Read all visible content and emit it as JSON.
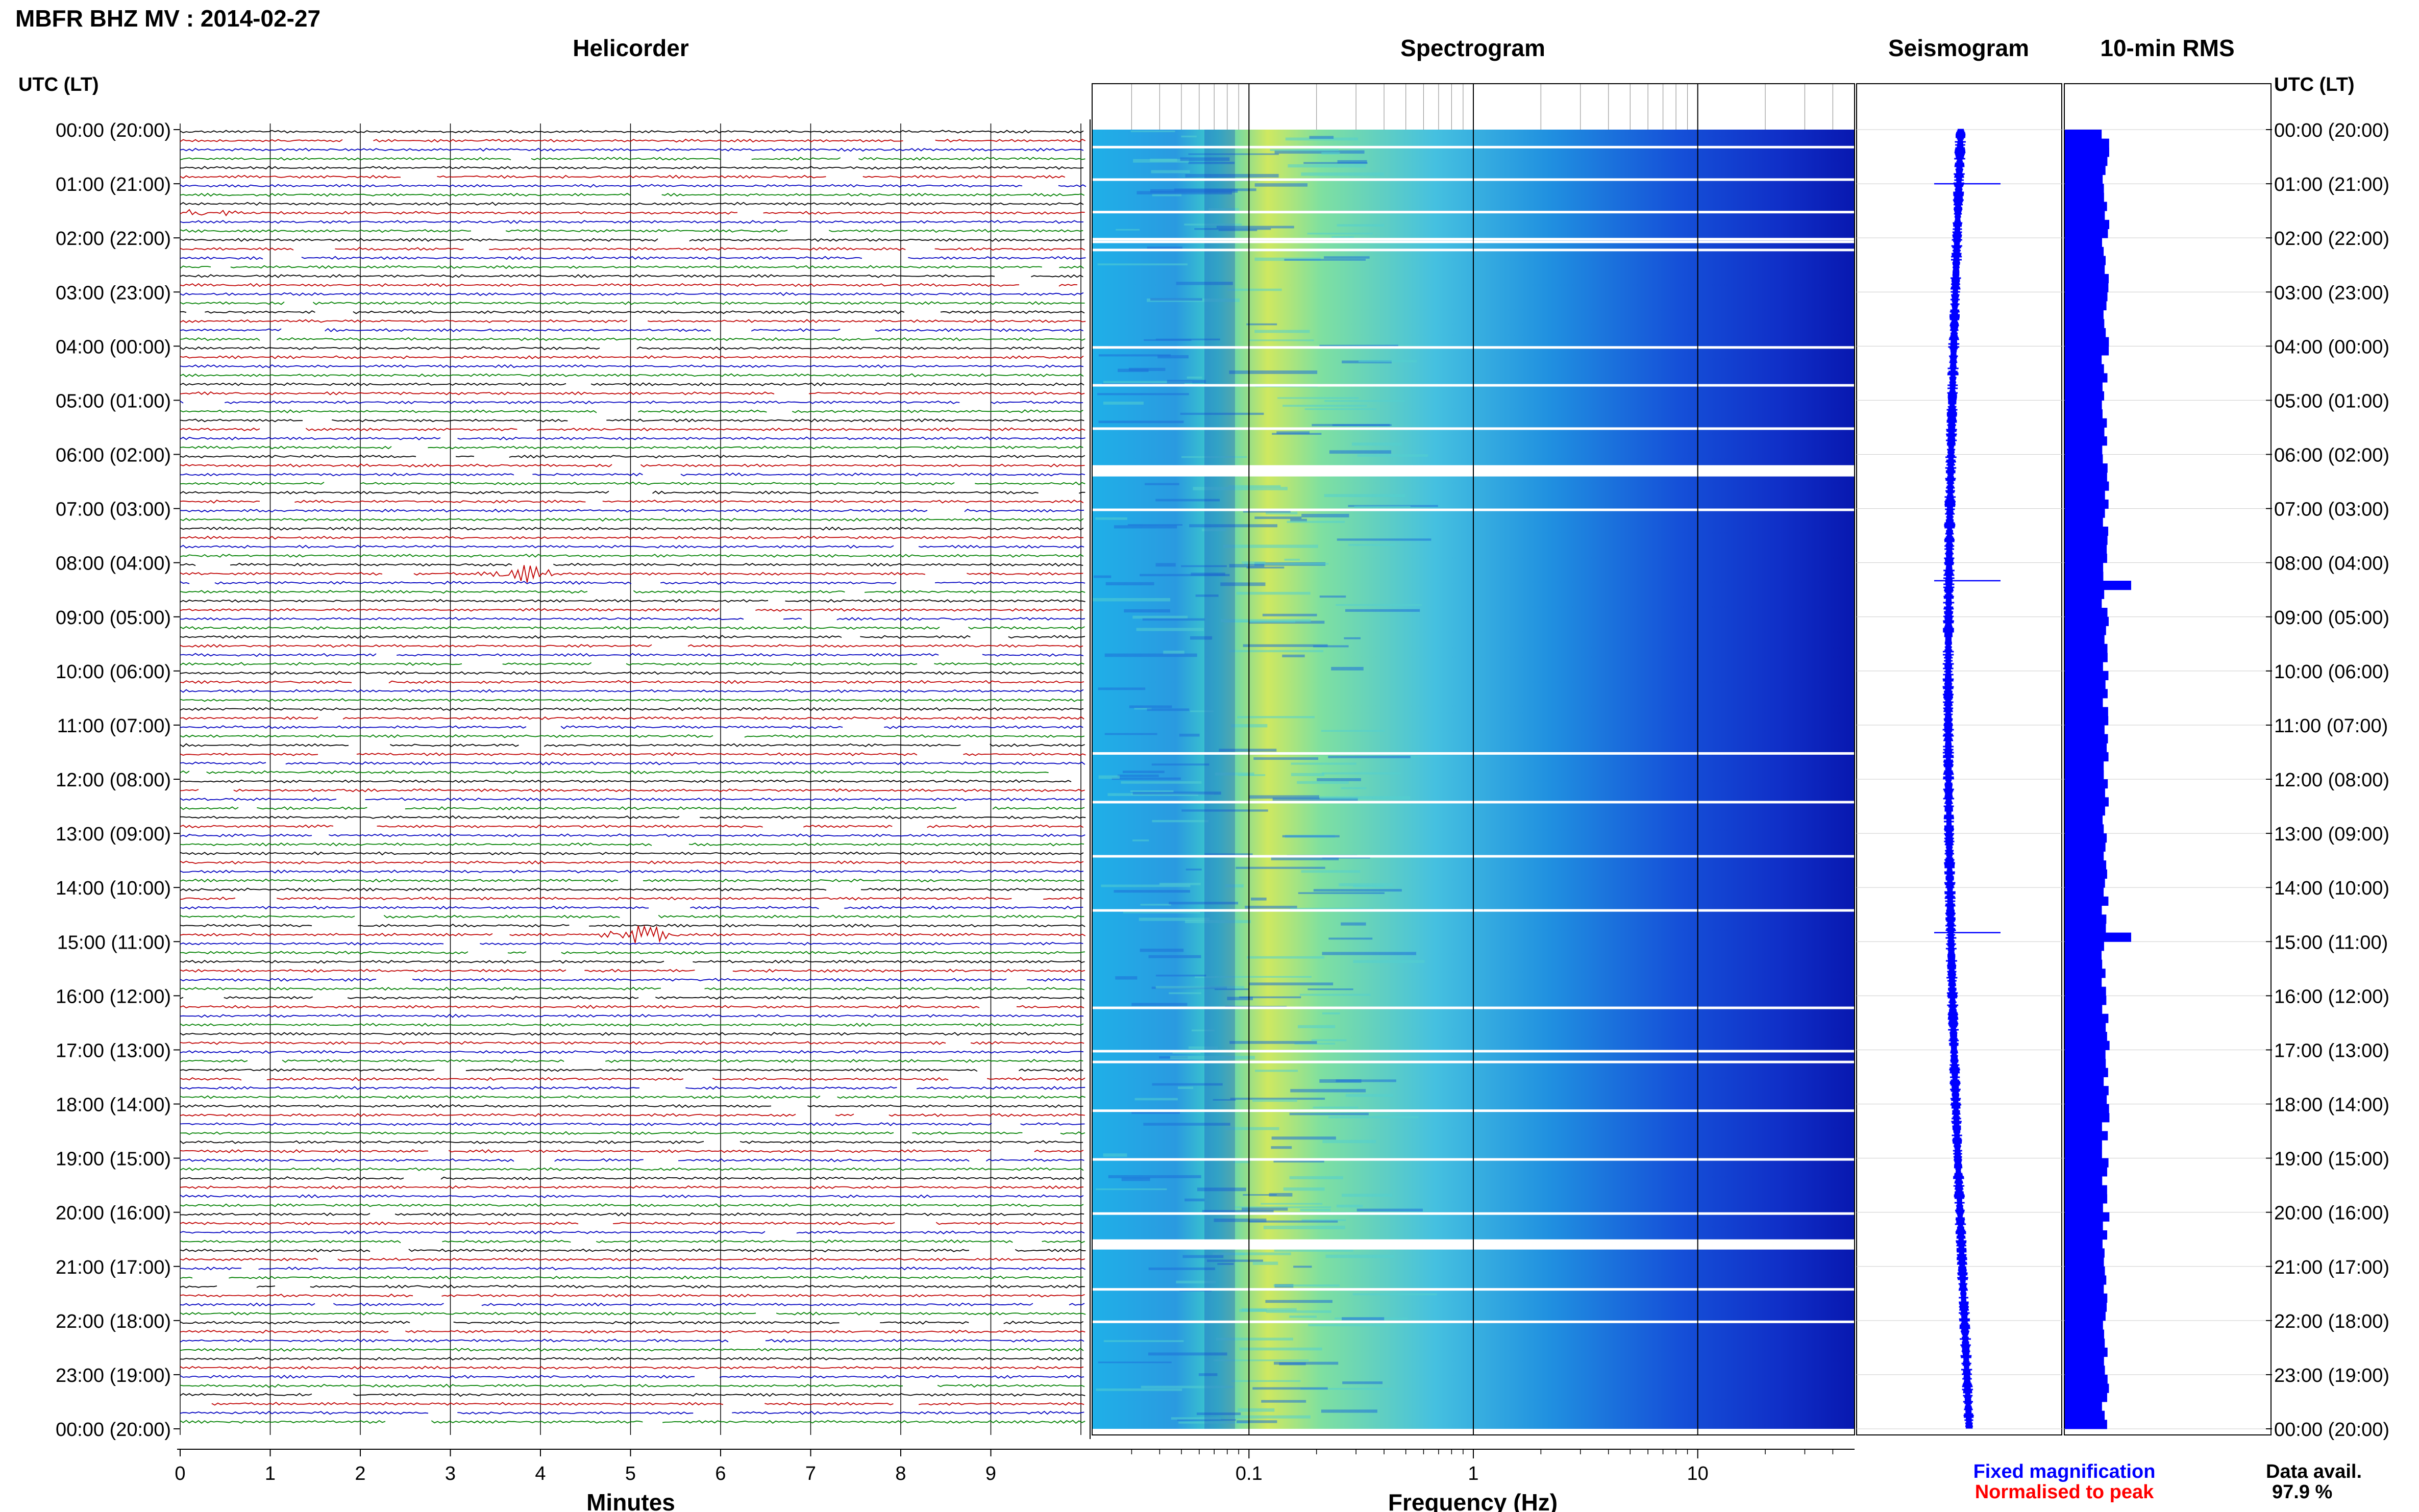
{
  "header": {
    "station_title": "MBFR BHZ MV : 2014-02-27"
  },
  "panels": {
    "helicorder_title": "Helicorder",
    "spectrogram_title": "Spectrogram",
    "seismogram_title": "Seismogram",
    "rms_title": "10-min RMS"
  },
  "axes": {
    "utc_left_label": "UTC (LT)",
    "utc_right_label": "UTC (LT)",
    "minutes_label": "Minutes",
    "frequency_label": "Frequency (Hz)",
    "minute_ticks": [
      "0",
      "1",
      "2",
      "3",
      "4",
      "5",
      "6",
      "7",
      "8",
      "9"
    ],
    "frequency_ticks": [
      "0.1",
      "1",
      "10"
    ],
    "time_ticks": [
      "00:00 (20:00)",
      "01:00 (21:00)",
      "02:00 (22:00)",
      "03:00 (23:00)",
      "04:00 (00:00)",
      "05:00 (01:00)",
      "06:00 (02:00)",
      "07:00 (03:00)",
      "08:00 (04:00)",
      "09:00 (05:00)",
      "10:00 (06:00)",
      "11:00 (07:00)",
      "12:00 (08:00)",
      "13:00 (09:00)",
      "14:00 (10:00)",
      "15:00 (11:00)",
      "16:00 (12:00)",
      "17:00 (13:00)",
      "18:00 (14:00)",
      "19:00 (15:00)",
      "20:00 (16:00)",
      "21:00 (17:00)",
      "22:00 (18:00)",
      "23:00 (19:00)",
      "00:00 (20:00)"
    ]
  },
  "legend": {
    "fixed_magnification": "Fixed magnification",
    "normalised_to_peak": "Normalised to peak",
    "data_avail_label": "Data avail.",
    "data_avail_value": "97.9 %"
  },
  "colors": {
    "helicorder_traces": [
      "#000000",
      "#c00000",
      "#0000c0",
      "#008000"
    ],
    "fixed_magnification": "#0000ff",
    "normalised_to_peak": "#ff0000",
    "rms_fill": "#0000ff"
  },
  "chart_data": [
    {
      "type": "line",
      "title": "Helicorder",
      "xlabel": "Minutes",
      "xlim": [
        0,
        10
      ],
      "ylabel": "UTC (LT)",
      "trace_interval_minutes": 10,
      "traces_per_day": 144,
      "events": [
        {
          "time_utc": "08:10",
          "minute": 3.8,
          "amplitude": "large"
        },
        {
          "time_utc": "14:50",
          "minute": 5.1,
          "amplitude": "large"
        },
        {
          "time_utc": "01:30",
          "minute": 0.2,
          "amplitude": "small"
        }
      ]
    },
    {
      "type": "heatmap",
      "title": "Spectrogram",
      "xlabel": "Frequency (Hz)",
      "xscale": "log",
      "xlim": [
        0.02,
        50
      ]
    },
    {
      "type": "line",
      "title": "Seismogram",
      "peaks_utc": [
        "01:00",
        "08:20",
        "14:50"
      ]
    },
    {
      "type": "bar",
      "title": "10-min RMS",
      "orientation": "horizontal",
      "peaks_utc": [
        "08:20",
        "14:50"
      ]
    }
  ]
}
